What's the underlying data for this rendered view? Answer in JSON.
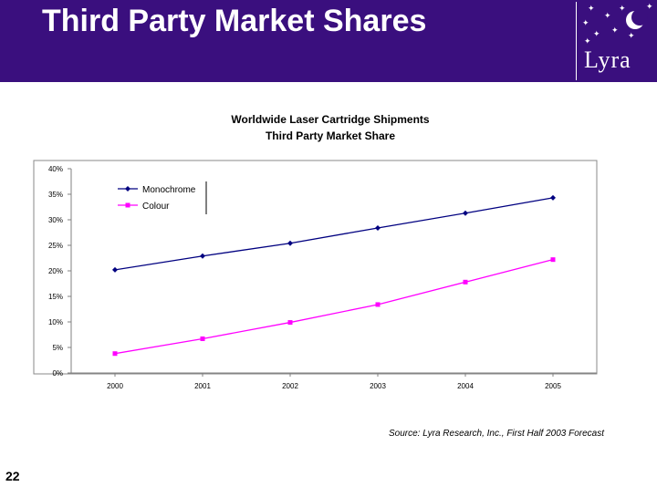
{
  "slide": {
    "title": "Third Party Market Shares",
    "page_number": "22",
    "logo_text": "Lyra",
    "source": "Source: Lyra Research, Inc., First Half 2003 Forecast",
    "header_color": "#3a0f7e"
  },
  "chart_data": {
    "type": "line",
    "title": "Worldwide Laser Cartridge Shipments",
    "subtitle": "Third Party Market Share",
    "x": [
      "2000",
      "2001",
      "2002",
      "2003",
      "2004",
      "2005"
    ],
    "series": [
      {
        "name": "Monochrome",
        "values": [
          20.2,
          22.9,
          25.4,
          28.4,
          31.3,
          34.3
        ],
        "color": "#000080",
        "marker": "diamond"
      },
      {
        "name": "Colour",
        "values": [
          3.8,
          6.7,
          9.9,
          13.4,
          17.8,
          22.2
        ],
        "color": "#ff00ff",
        "marker": "square"
      }
    ],
    "yticks": [
      "0%",
      "5%",
      "10%",
      "15%",
      "20%",
      "25%",
      "30%",
      "35%",
      "40%"
    ],
    "ylim": [
      0,
      40
    ],
    "grid": false,
    "legend": "top-left"
  }
}
